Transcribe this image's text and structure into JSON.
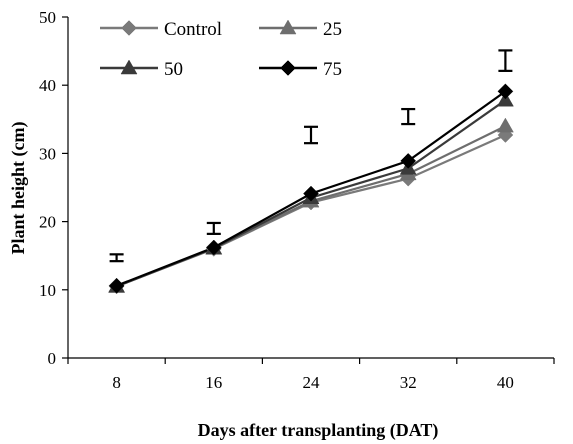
{
  "chart_data": {
    "type": "line",
    "xlabel": "Days after transplanting (DAT)",
    "ylabel": "Plant height (cm)",
    "categories": [
      "8",
      "16",
      "24",
      "32",
      "40"
    ],
    "ylim": [
      0,
      50
    ],
    "yticks": [
      "0",
      "10",
      "20",
      "30",
      "40",
      "50"
    ],
    "grid": false,
    "legend_position": "top-left",
    "series": [
      {
        "name": "Control",
        "marker": "diamond",
        "color": "#7a7a7a",
        "values": [
          10.5,
          16.0,
          22.8,
          26.3,
          32.7
        ]
      },
      {
        "name": "25",
        "marker": "triangle",
        "color": "#6e6e6e",
        "values": [
          10.5,
          16.1,
          23.0,
          27.0,
          34.0
        ]
      },
      {
        "name": "50",
        "marker": "triangle",
        "color": "#3a3a3a",
        "values": [
          10.5,
          16.1,
          23.5,
          27.8,
          37.8
        ]
      },
      {
        "name": "75",
        "marker": "diamond",
        "color": "#000000",
        "values": [
          10.6,
          16.2,
          24.1,
          28.9,
          39.1
        ]
      }
    ],
    "error_bars": {
      "categories": [
        "8",
        "16",
        "24",
        "32",
        "40"
      ],
      "center": [
        14.7,
        19.0,
        32.7,
        35.4,
        43.6
      ],
      "low": [
        14.2,
        18.2,
        31.5,
        34.3,
        42.1
      ],
      "high": [
        15.2,
        19.8,
        33.9,
        36.5,
        45.1
      ]
    }
  }
}
